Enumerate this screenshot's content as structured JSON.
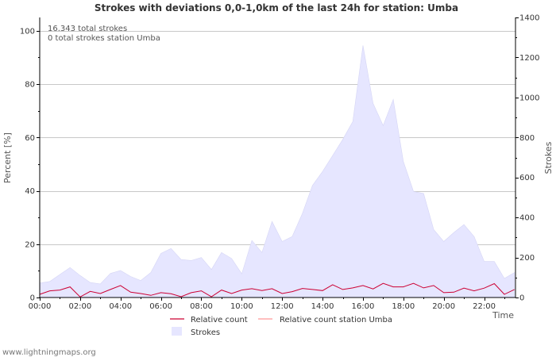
{
  "chart_data": {
    "type": "line",
    "title": "Strokes with deviations 0,0-1,0km of the last 24h for station: Umba",
    "xlabel": "Time",
    "ylabel_left": "Percent   [%]",
    "ylabel_right": "Strokes",
    "ylim_left": [
      0,
      105
    ],
    "ylim_right": [
      0,
      1400
    ],
    "x_range": [
      0,
      23.55
    ],
    "x_tick_values": [
      0,
      2,
      4,
      6,
      8,
      10,
      12,
      14,
      16,
      18,
      20,
      22
    ],
    "x_tick_labels": [
      "00:00",
      "02:00",
      "04:00",
      "06:00",
      "08:00",
      "10:00",
      "12:00",
      "14:00",
      "16:00",
      "18:00",
      "20:00",
      "22:00"
    ],
    "y_left_ticks": [
      0,
      20,
      40,
      60,
      80,
      100
    ],
    "y_right_ticks": [
      0,
      200,
      400,
      600,
      800,
      1000,
      1200,
      1400
    ],
    "grid": true,
    "info_lines": [
      "16.343 total strokes",
      "0 total strokes station Umba"
    ],
    "legend": {
      "relative_count": "Relative count",
      "relative_count_station": "Relative count station Umba",
      "strokes": "Strokes"
    },
    "colors": {
      "relative_count": "#cc0033",
      "relative_count_station": "#ff9999",
      "strokes_fill": "#e6e6ff",
      "strokes_line": "#d5d5f5"
    },
    "series": [
      {
        "name": "Strokes",
        "axis": "right",
        "x": [
          0.0,
          0.5,
          1.0,
          1.5,
          2.0,
          2.5,
          3.0,
          3.5,
          4.0,
          4.5,
          5.0,
          5.5,
          6.0,
          6.5,
          7.0,
          7.5,
          8.0,
          8.5,
          9.0,
          9.5,
          10.0,
          10.5,
          11.0,
          11.5,
          12.0,
          12.5,
          13.0,
          13.5,
          14.0,
          14.5,
          15.0,
          15.5,
          16.0,
          16.5,
          17.0,
          17.5,
          18.0,
          18.5,
          19.0,
          19.5,
          20.0,
          20.5,
          21.0,
          21.5,
          22.0,
          22.5,
          23.0,
          23.5
        ],
        "values": [
          72,
          80,
          115,
          150,
          110,
          75,
          68,
          120,
          135,
          105,
          85,
          125,
          220,
          245,
          190,
          185,
          200,
          140,
          225,
          195,
          118,
          285,
          225,
          380,
          280,
          305,
          420,
          560,
          630,
          710,
          790,
          880,
          1260,
          970,
          860,
          990,
          680,
          530,
          520,
          340,
          280,
          325,
          365,
          305,
          180,
          180,
          95,
          125
        ]
      },
      {
        "name": "Relative count",
        "axis": "left",
        "x": [
          0.0,
          0.5,
          1.0,
          1.5,
          2.0,
          2.5,
          3.0,
          3.5,
          4.0,
          4.5,
          5.0,
          5.5,
          6.0,
          6.5,
          7.0,
          7.5,
          8.0,
          8.5,
          9.0,
          9.5,
          10.0,
          10.5,
          11.0,
          11.5,
          12.0,
          12.5,
          13.0,
          13.5,
          14.0,
          14.5,
          15.0,
          15.5,
          16.0,
          16.5,
          17.0,
          17.5,
          18.0,
          18.5,
          19.0,
          19.5,
          20.0,
          20.5,
          21.0,
          21.5,
          22.0,
          22.5,
          23.0,
          23.5
        ],
        "values": [
          1.2,
          2.5,
          2.8,
          4.0,
          0.2,
          2.3,
          1.5,
          3.0,
          4.5,
          2.0,
          1.5,
          0.8,
          1.8,
          1.4,
          0.3,
          1.8,
          2.5,
          0.3,
          2.8,
          1.5,
          2.8,
          3.3,
          2.6,
          3.3,
          1.5,
          2.2,
          3.4,
          3.0,
          2.6,
          4.8,
          3.0,
          3.6,
          4.5,
          3.2,
          5.3,
          4.0,
          4.0,
          5.3,
          3.6,
          4.5,
          1.8,
          2.0,
          3.5,
          2.5,
          3.5,
          5.2,
          1.2,
          3.0
        ]
      },
      {
        "name": "Relative count station Umba",
        "axis": "left",
        "x": [],
        "values": []
      }
    ]
  },
  "footer": {
    "site": "www.lightningmaps.org"
  }
}
